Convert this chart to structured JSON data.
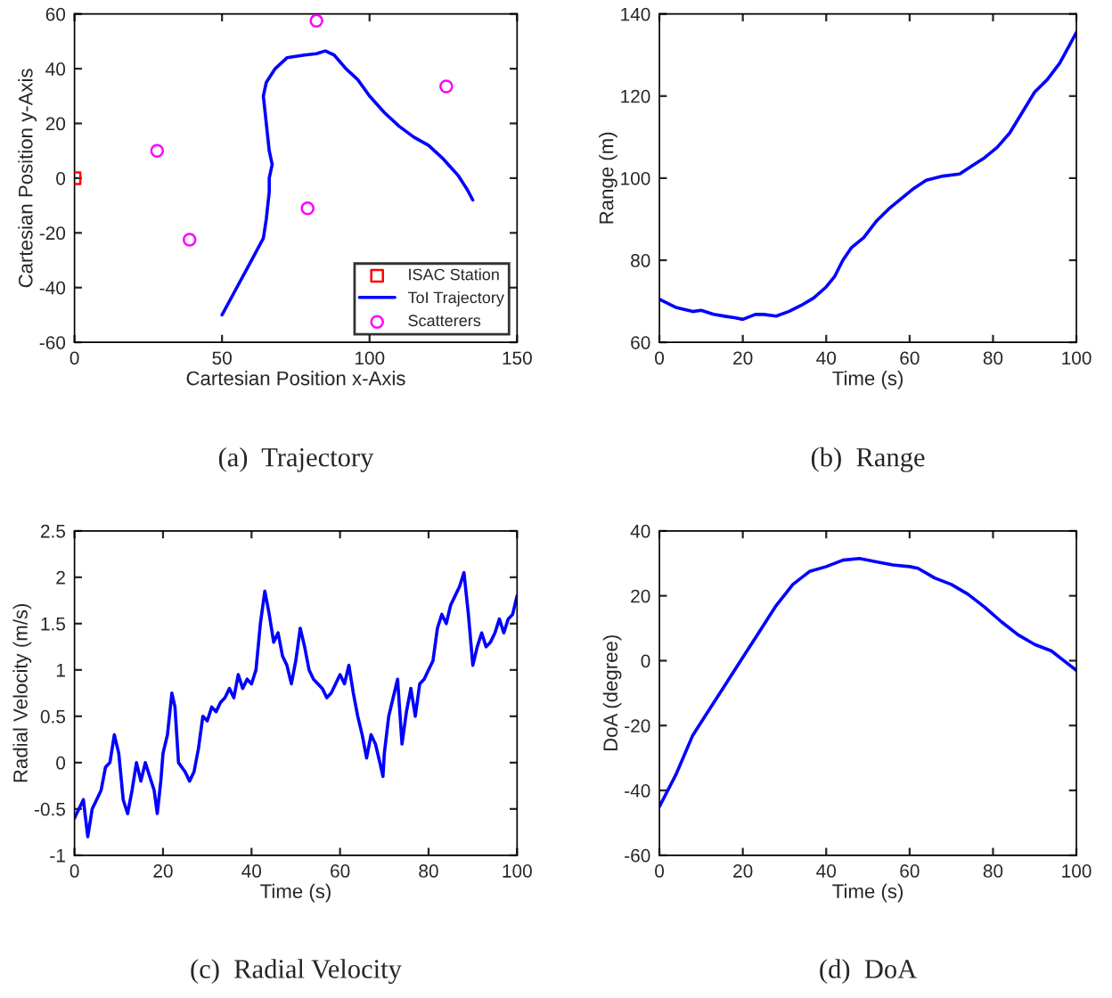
{
  "chart_data": [
    {
      "type": "scatter",
      "xlabel": "Cartesian Position x-Axis",
      "ylabel": "Cartesian Position y-Axis",
      "xlim": [
        0,
        150
      ],
      "ylim": [
        -60,
        60
      ],
      "xticks": [
        0,
        50,
        100,
        150
      ],
      "yticks": [
        -60,
        -40,
        -20,
        0,
        20,
        40,
        60
      ],
      "grid": false,
      "legend": "bottom right",
      "annotations": [
        "(a)  Trajectory"
      ],
      "series": [
        {
          "name": "ISAC Station",
          "type": "scatter",
          "marker": "square",
          "color": "#ff0000",
          "x": [
            0
          ],
          "values": [
            0
          ]
        },
        {
          "name": "ToI Trajectory",
          "type": "line",
          "marker": "none",
          "color": "#0000ff",
          "x": [
            50,
            55,
            60,
            64,
            65,
            66,
            66,
            67,
            66,
            65,
            64,
            65,
            68,
            72,
            78,
            82,
            85,
            88,
            92,
            96,
            100,
            105,
            110,
            115,
            120,
            125,
            130,
            133,
            135
          ],
          "values": [
            -50,
            -40,
            -30,
            -22,
            -15,
            -5,
            0,
            5,
            10,
            20,
            30,
            35,
            40,
            44,
            45,
            45.5,
            46.5,
            45,
            40,
            36,
            30,
            24,
            19,
            15,
            12,
            7,
            1,
            -4,
            -8
          ]
        },
        {
          "name": "Scatterers",
          "type": "scatter",
          "marker": "circle",
          "color": "#ff00ff",
          "x": [
            28,
            39,
            79,
            82,
            126
          ],
          "values": [
            10,
            -22.5,
            -11,
            57.5,
            33.5
          ]
        }
      ]
    },
    {
      "type": "line",
      "xlabel": "Time (s)",
      "ylabel": "Range (m)",
      "xlim": [
        0,
        100
      ],
      "ylim": [
        60,
        140
      ],
      "xticks": [
        0,
        20,
        40,
        60,
        80,
        100
      ],
      "yticks": [
        60,
        80,
        100,
        120,
        140
      ],
      "grid": false,
      "annotations": [
        "(b)  Range"
      ],
      "series": [
        {
          "color": "#0000ff",
          "x": [
            0,
            4,
            8,
            10,
            13,
            16,
            18,
            20,
            23,
            25,
            28,
            31,
            34,
            37,
            40,
            42,
            44,
            46,
            49,
            52,
            55,
            58,
            61,
            64,
            68,
            72,
            75,
            78,
            81,
            84,
            87,
            90,
            93,
            96,
            100
          ],
          "values": [
            70.5,
            68.5,
            67.5,
            67.8,
            66.8,
            66.3,
            66,
            65.6,
            66.8,
            66.8,
            66.4,
            67.5,
            69,
            70.8,
            73.5,
            76,
            80,
            83,
            85.5,
            89.5,
            92.5,
            95,
            97.5,
            99.5,
            100.5,
            101,
            103,
            105,
            107.5,
            111,
            116,
            121,
            124,
            128,
            135.5
          ]
        }
      ]
    },
    {
      "type": "line",
      "xlabel": "Time (s)",
      "ylabel": "Radial Velocity (m/s)",
      "xlim": [
        0,
        100
      ],
      "ylim": [
        -1,
        2.5
      ],
      "xticks": [
        0,
        20,
        40,
        60,
        80,
        100
      ],
      "yticks": [
        -1,
        -0.5,
        0,
        0.5,
        1,
        1.5,
        2,
        2.5
      ],
      "grid": false,
      "annotations": [
        "(c)  Radial Velocity"
      ],
      "series": [
        {
          "color": "#0000ff",
          "x": [
            0,
            1,
            2,
            3,
            4,
            5,
            6,
            7,
            8,
            9,
            10,
            11,
            12,
            13,
            14,
            15,
            16,
            17,
            18,
            18.7,
            19.5,
            20,
            21,
            22,
            22.7,
            23.5,
            25,
            26,
            27,
            28,
            29,
            30,
            31,
            32,
            33,
            34,
            35,
            36,
            37,
            38,
            39,
            40,
            41,
            42,
            43,
            44,
            45,
            46,
            47,
            48,
            49,
            50,
            51,
            52,
            53,
            54,
            55,
            56,
            57,
            58,
            59,
            60,
            61,
            62,
            63,
            64,
            65,
            66,
            67,
            68,
            69,
            69.7,
            70,
            71,
            72,
            73,
            74,
            75,
            76,
            77,
            78,
            79,
            80,
            81,
            82,
            83,
            84,
            85,
            86,
            87,
            88,
            89,
            90,
            91,
            92,
            93,
            94,
            95,
            96,
            97,
            98,
            99,
            100
          ],
          "values": [
            -0.6,
            -0.5,
            -0.4,
            -0.8,
            -0.5,
            -0.4,
            -0.3,
            -0.05,
            0.0,
            0.3,
            0.1,
            -0.4,
            -0.55,
            -0.3,
            0.0,
            -0.2,
            0.0,
            -0.15,
            -0.3,
            -0.55,
            -0.2,
            0.1,
            0.3,
            0.75,
            0.6,
            0.0,
            -0.1,
            -0.2,
            -0.1,
            0.15,
            0.5,
            0.45,
            0.6,
            0.55,
            0.65,
            0.7,
            0.8,
            0.7,
            0.95,
            0.8,
            0.9,
            0.85,
            1.0,
            1.5,
            1.85,
            1.6,
            1.3,
            1.4,
            1.15,
            1.05,
            0.85,
            1.1,
            1.45,
            1.25,
            1.0,
            0.9,
            0.85,
            0.8,
            0.7,
            0.75,
            0.85,
            0.95,
            0.85,
            1.05,
            0.75,
            0.5,
            0.3,
            0.05,
            0.3,
            0.2,
            0.0,
            -0.15,
            0.1,
            0.5,
            0.7,
            0.9,
            0.2,
            0.55,
            0.8,
            0.5,
            0.85,
            0.9,
            1.0,
            1.1,
            1.45,
            1.6,
            1.5,
            1.7,
            1.8,
            1.9,
            2.05,
            1.6,
            1.05,
            1.25,
            1.4,
            1.25,
            1.3,
            1.4,
            1.55,
            1.4,
            1.55,
            1.6,
            1.8
          ]
        }
      ]
    },
    {
      "type": "line",
      "xlabel": "Time (s)",
      "ylabel": "DoA (degree)",
      "xlim": [
        0,
        100
      ],
      "ylim": [
        -60,
        40
      ],
      "xticks": [
        0,
        20,
        40,
        60,
        80,
        100
      ],
      "yticks": [
        -60,
        -40,
        -20,
        0,
        20,
        40
      ],
      "grid": false,
      "annotations": [
        "(d)  DoA"
      ],
      "series": [
        {
          "color": "#0000ff",
          "x": [
            0,
            4,
            8,
            12,
            16,
            20,
            24,
            28,
            32,
            36,
            40,
            44,
            48,
            52,
            56,
            60,
            62,
            66,
            70,
            74,
            78,
            82,
            86,
            90,
            94,
            98,
            100
          ],
          "values": [
            -45,
            -35,
            -23,
            -15,
            -7,
            1,
            9,
            17,
            23.5,
            27.5,
            29,
            31,
            31.5,
            30.5,
            29.5,
            29,
            28.5,
            25.5,
            23.5,
            20.5,
            16.5,
            12,
            8,
            5,
            3,
            -1,
            -3
          ]
        }
      ]
    }
  ]
}
